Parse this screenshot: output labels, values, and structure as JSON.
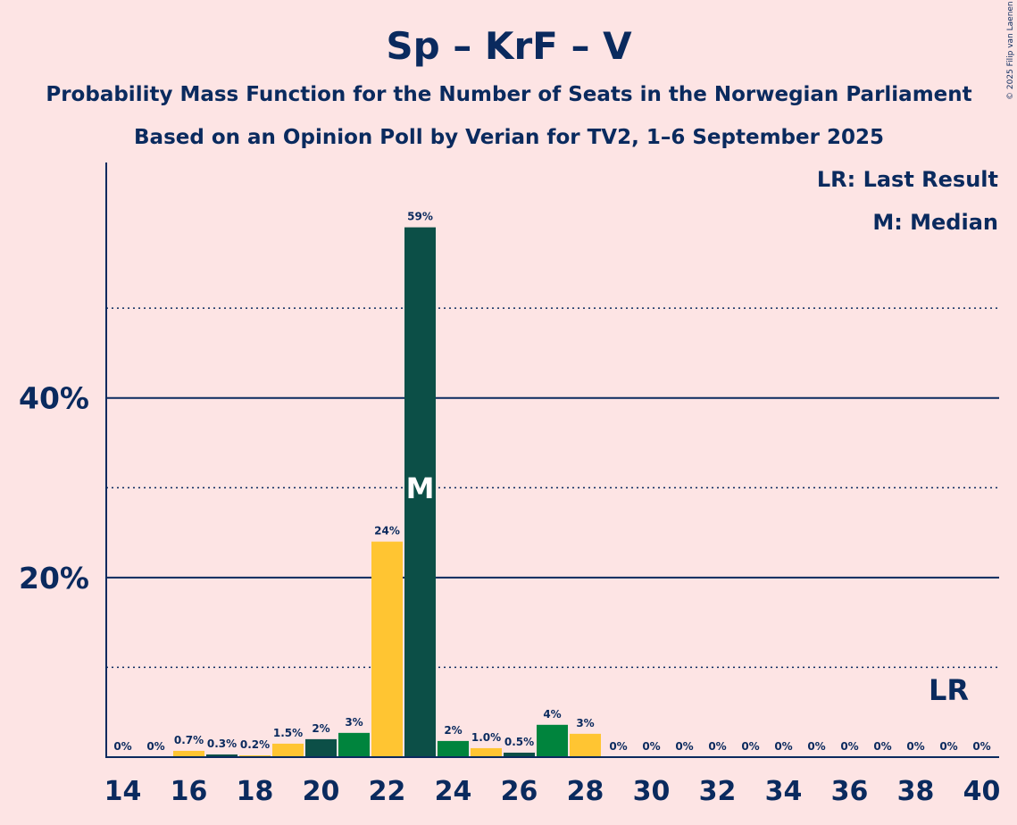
{
  "chart_data": {
    "type": "bar",
    "title": "Sp – KrF – V",
    "subtitle_lines": [
      "Probability Mass Function for the Number of Seats in the Norwegian Parliament",
      "Based on an Opinion Poll by Verian for TV2, 1–6 September 2025"
    ],
    "copyright": "© 2025 Filip van Laenen",
    "legend": {
      "lr": "LR: Last Result",
      "m": "M: Median",
      "placement": "top-right"
    },
    "markers": {
      "last_result_seat": 39,
      "last_result_label": "LR",
      "median_seat": 23,
      "median_label": "M"
    },
    "categories": [
      14,
      15,
      16,
      17,
      18,
      19,
      20,
      21,
      22,
      23,
      24,
      25,
      26,
      27,
      28,
      29,
      30,
      31,
      32,
      33,
      34,
      35,
      36,
      37,
      38,
      39,
      40
    ],
    "x_tick_labels": [
      "14",
      "16",
      "18",
      "20",
      "22",
      "24",
      "26",
      "28",
      "30",
      "32",
      "34",
      "36",
      "38",
      "40"
    ],
    "values": [
      0,
      0,
      0.7,
      0.3,
      0.2,
      1.5,
      2,
      2.7,
      24,
      59,
      1.8,
      1.0,
      0.5,
      3.6,
      2.6,
      0,
      0,
      0,
      0,
      0,
      0,
      0,
      0,
      0,
      0,
      0,
      0
    ],
    "value_labels": [
      "0%",
      "0%",
      "0.7%",
      "0.3%",
      "0.2%",
      "1.5%",
      "2%",
      "3%",
      "24%",
      "59%",
      "2%",
      "1.0%",
      "0.5%",
      "4%",
      "3%",
      "0%",
      "0%",
      "0%",
      "0%",
      "0%",
      "0%",
      "0%",
      "0%",
      "0%",
      "0%",
      "0%",
      "0%"
    ],
    "bar_colors": [
      "#ffc532",
      "#0c4f47",
      "#ffc532",
      "#0c4f47",
      "#ffc532",
      "#ffc532",
      "#0c4f47",
      "#00843d",
      "#ffc532",
      "#0c4f47",
      "#00843d",
      "#ffc532",
      "#0c4f47",
      "#00843d",
      "#ffc532",
      "#ffc532",
      "#ffc532",
      "#ffc532",
      "#ffc532",
      "#ffc532",
      "#ffc532",
      "#ffc532",
      "#ffc532",
      "#ffc532",
      "#ffc532",
      "#ffc532",
      "#ffc532"
    ],
    "ylim": [
      0,
      64
    ],
    "y_ticks_major": [
      20,
      40
    ],
    "y_tick_labels": [
      "20%",
      "40%"
    ],
    "y_ticks_minor": [
      10,
      30,
      50
    ],
    "colors": {
      "text": "#0a2a5e",
      "background": "#fde4e4",
      "yellow": "#ffc532",
      "dark_green": "#0c4f47",
      "green": "#00843d"
    }
  }
}
